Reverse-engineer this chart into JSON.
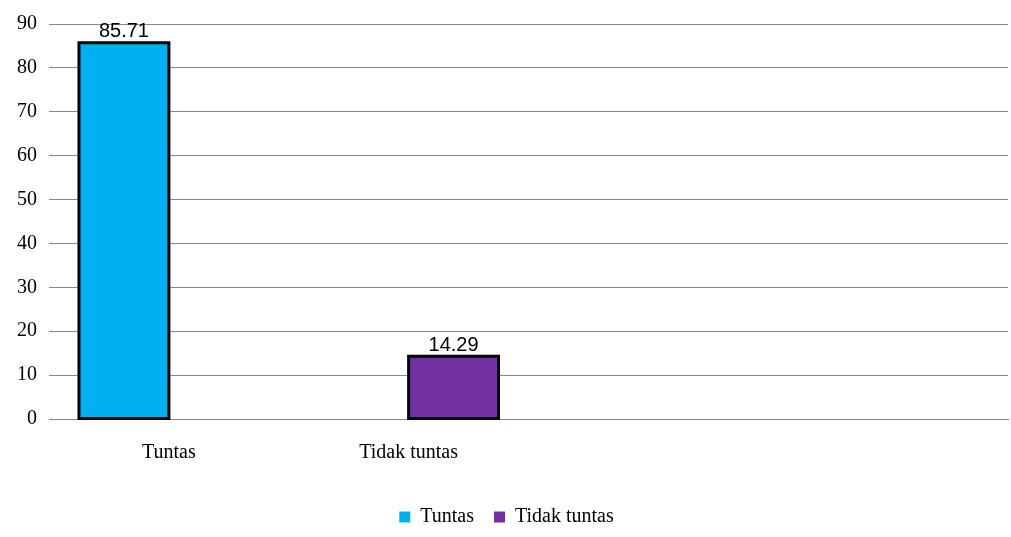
{
  "chart_data": {
    "type": "bar",
    "categories": [
      "Tuntas",
      "Tidak tuntas",
      null,
      null
    ],
    "series": [
      {
        "name": "Tuntas",
        "color": "#00b0f0",
        "values": [
          85.71,
          null,
          null,
          null
        ]
      },
      {
        "name": "Tidak tuntas",
        "color": "#7030a0",
        "values": [
          null,
          14.29,
          null,
          null
        ]
      }
    ],
    "ylim": [
      0,
      90
    ],
    "yticks": [
      0,
      10,
      20,
      30,
      40,
      50,
      60,
      70,
      80,
      90
    ],
    "grid": "y",
    "legend": "bottom",
    "data_labels": true
  }
}
